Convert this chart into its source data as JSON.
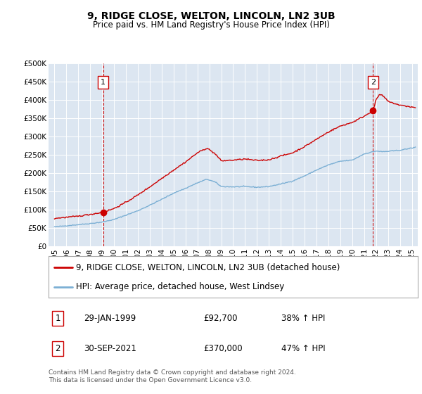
{
  "title": "9, RIDGE CLOSE, WELTON, LINCOLN, LN2 3UB",
  "subtitle": "Price paid vs. HM Land Registry's House Price Index (HPI)",
  "background_color": "#ffffff",
  "plot_bg_color": "#dce6f1",
  "grid_color": "#ffffff",
  "ylim": [
    0,
    500000
  ],
  "yticks": [
    0,
    50000,
    100000,
    150000,
    200000,
    250000,
    300000,
    350000,
    400000,
    450000,
    500000
  ],
  "ytick_labels": [
    "£0",
    "£50K",
    "£100K",
    "£150K",
    "£200K",
    "£250K",
    "£300K",
    "£350K",
    "£400K",
    "£450K",
    "£500K"
  ],
  "xlim_start": 1994.5,
  "xlim_end": 2025.5,
  "xticks": [
    1995,
    1996,
    1997,
    1998,
    1999,
    2000,
    2001,
    2002,
    2003,
    2004,
    2005,
    2006,
    2007,
    2008,
    2009,
    2010,
    2011,
    2012,
    2013,
    2014,
    2015,
    2016,
    2017,
    2018,
    2019,
    2020,
    2021,
    2022,
    2023,
    2024,
    2025
  ],
  "sale1_x": 1999.08,
  "sale1_y": 92700,
  "sale1_label": "29-JAN-1999",
  "sale1_price": "£92,700",
  "sale1_hpi": "38% ↑ HPI",
  "sale2_x": 2021.75,
  "sale2_y": 370000,
  "sale2_label": "30-SEP-2021",
  "sale2_price": "£370,000",
  "sale2_hpi": "47% ↑ HPI",
  "legend_line1": "9, RIDGE CLOSE, WELTON, LINCOLN, LN2 3UB (detached house)",
  "legend_line2": "HPI: Average price, detached house, West Lindsey",
  "footer": "Contains HM Land Registry data © Crown copyright and database right 2024.\nThis data is licensed under the Open Government Licence v3.0.",
  "red_color": "#cc0000",
  "blue_color": "#7bafd4",
  "title_fontsize": 10,
  "subtitle_fontsize": 8.5,
  "tick_fontsize": 7.5,
  "label_fontsize": 8.5,
  "footer_fontsize": 6.5
}
